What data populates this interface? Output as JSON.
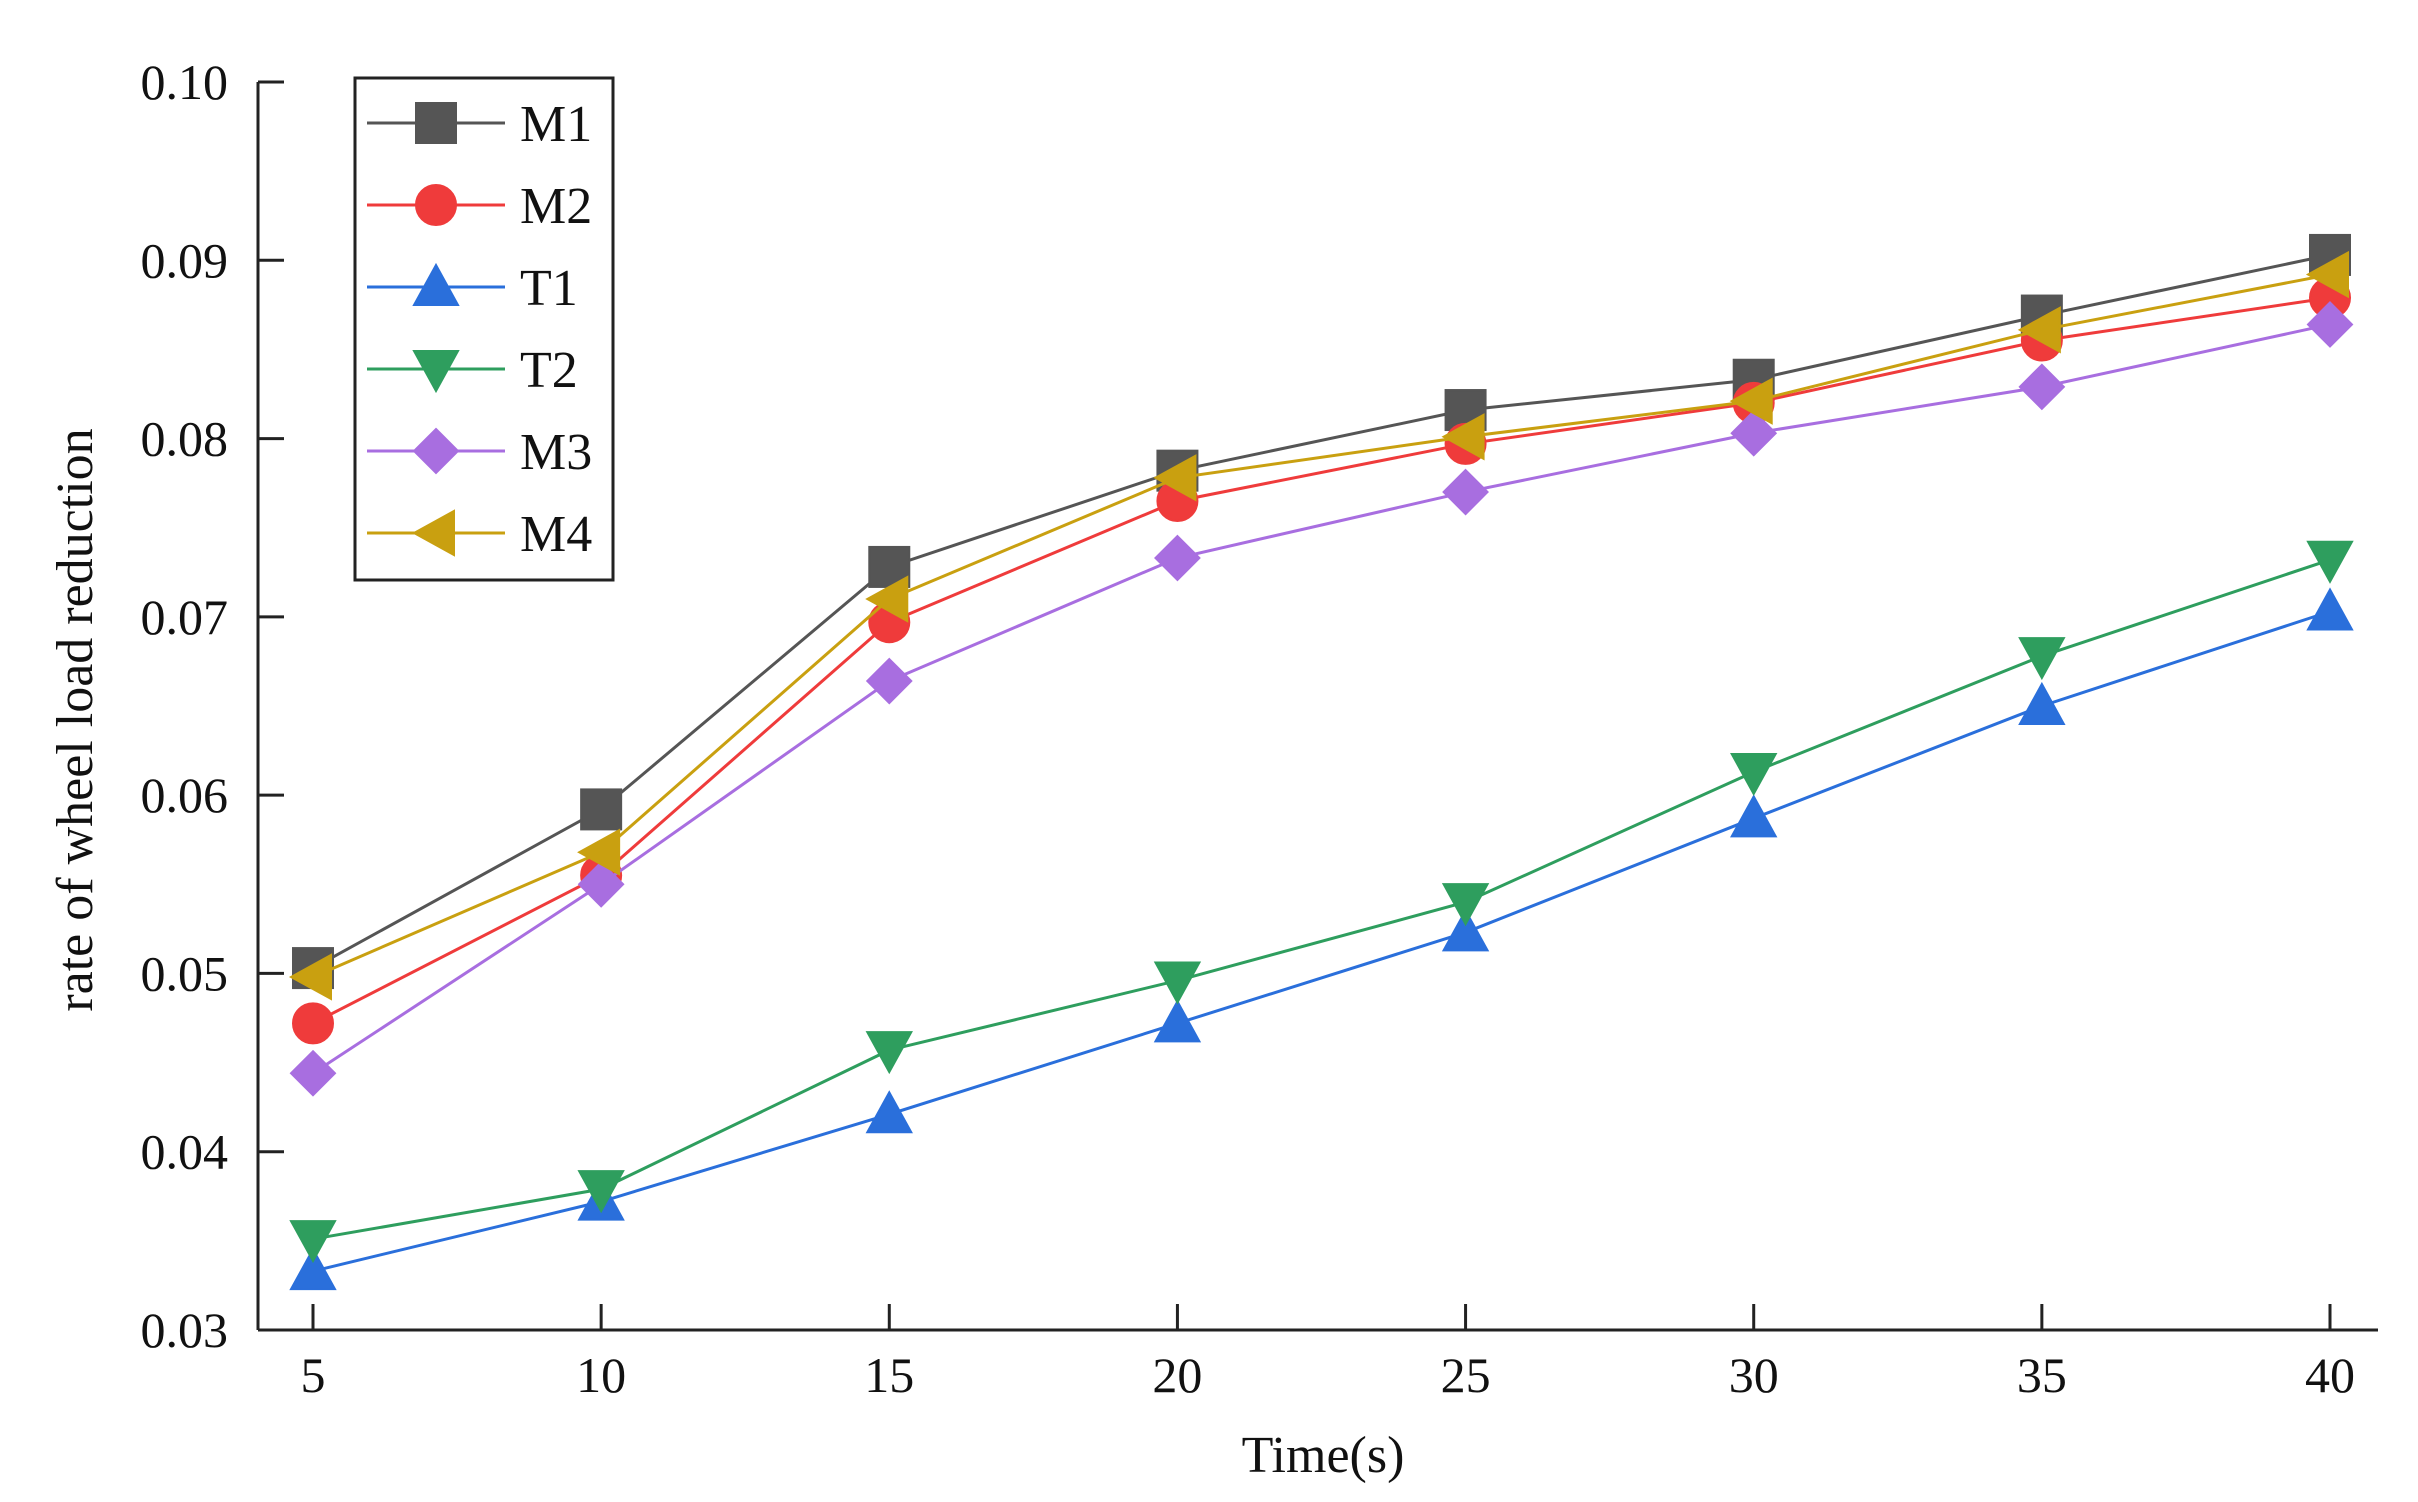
{
  "chart_data": {
    "type": "line",
    "title": "",
    "xlabel": "Time(s)",
    "ylabel": "rate of wheel load reduction",
    "x": [
      5,
      10,
      15,
      20,
      25,
      30,
      35,
      40
    ],
    "x_tick_labels": [
      "5",
      "10",
      "15",
      "20",
      "25",
      "30",
      "35",
      "40"
    ],
    "xlim": [
      4,
      42
    ],
    "ylim": [
      0.03,
      0.1
    ],
    "y_ticks": [
      0.03,
      0.04,
      0.05,
      0.06,
      0.07,
      0.08,
      0.09,
      0.1
    ],
    "y_tick_labels": [
      "0.03",
      "0.04",
      "0.05",
      "0.06",
      "0.07",
      "0.08",
      "0.09",
      "0.10"
    ],
    "grid": false,
    "legend_position": "top-left",
    "series": [
      {
        "name": "M1",
        "color": "#555555",
        "marker": "square",
        "values": [
          0.0503,
          0.0592,
          0.0728,
          0.0782,
          0.0816,
          0.0833,
          0.0869,
          0.0903
        ]
      },
      {
        "name": "M2",
        "color": "#ef3b3b",
        "marker": "circle",
        "values": [
          0.0472,
          0.0555,
          0.0697,
          0.0765,
          0.0797,
          0.082,
          0.0855,
          0.0879
        ]
      },
      {
        "name": "T1",
        "color": "#2a6fdb",
        "marker": "triangle-up",
        "values": [
          0.0333,
          0.0372,
          0.0421,
          0.0472,
          0.0523,
          0.0587,
          0.065,
          0.0703
        ]
      },
      {
        "name": "T2",
        "color": "#2e9e5e",
        "marker": "triangle-down",
        "values": [
          0.0351,
          0.0379,
          0.0457,
          0.0496,
          0.054,
          0.0613,
          0.0678,
          0.0732
        ]
      },
      {
        "name": "M3",
        "color": "#a86ee0",
        "marker": "diamond",
        "values": [
          0.0444,
          0.055,
          0.0664,
          0.0733,
          0.077,
          0.0803,
          0.0829,
          0.0864
        ]
      },
      {
        "name": "M4",
        "color": "#c9a010",
        "marker": "triangle-left",
        "values": [
          0.0498,
          0.0568,
          0.071,
          0.0778,
          0.0801,
          0.0821,
          0.0861,
          0.0892
        ]
      }
    ]
  }
}
